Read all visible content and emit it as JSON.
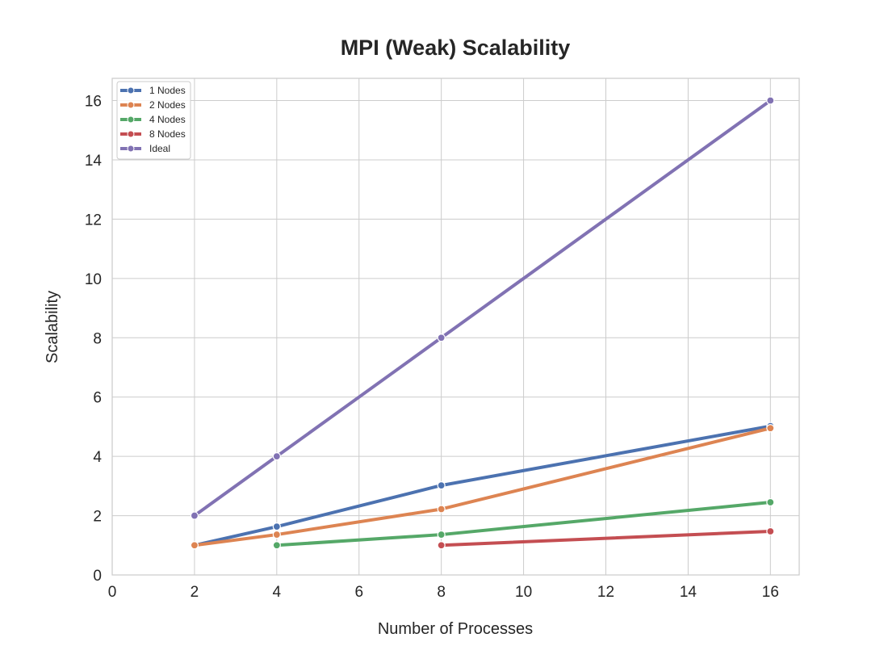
{
  "chart_data": {
    "type": "line",
    "title": "MPI (Weak) Scalability",
    "xlabel": "Number of Processes",
    "ylabel": "Scalability",
    "xlim": [
      0,
      16.7
    ],
    "ylim": [
      0,
      16.75
    ],
    "xticks": [
      0,
      2,
      4,
      6,
      8,
      10,
      12,
      14,
      16
    ],
    "yticks": [
      0,
      2,
      4,
      6,
      8,
      10,
      12,
      14,
      16
    ],
    "grid": true,
    "legend_position": "top-left",
    "series": [
      {
        "name": "1 Nodes",
        "color": "#4c72b0",
        "x": [
          2,
          4,
          8,
          16
        ],
        "y": [
          1.0,
          1.63,
          3.02,
          5.02
        ]
      },
      {
        "name": "2 Nodes",
        "color": "#dd8452",
        "x": [
          2,
          4,
          8,
          16
        ],
        "y": [
          1.0,
          1.36,
          2.22,
          4.95
        ]
      },
      {
        "name": "4 Nodes",
        "color": "#55a868",
        "x": [
          4,
          8,
          16
        ],
        "y": [
          1.0,
          1.36,
          2.45
        ]
      },
      {
        "name": "8 Nodes",
        "color": "#c44e52",
        "x": [
          8,
          16
        ],
        "y": [
          1.0,
          1.47
        ]
      },
      {
        "name": "Ideal",
        "color": "#8172b3",
        "x": [
          2,
          4,
          8,
          16
        ],
        "y": [
          2,
          4,
          8,
          16
        ]
      }
    ]
  }
}
